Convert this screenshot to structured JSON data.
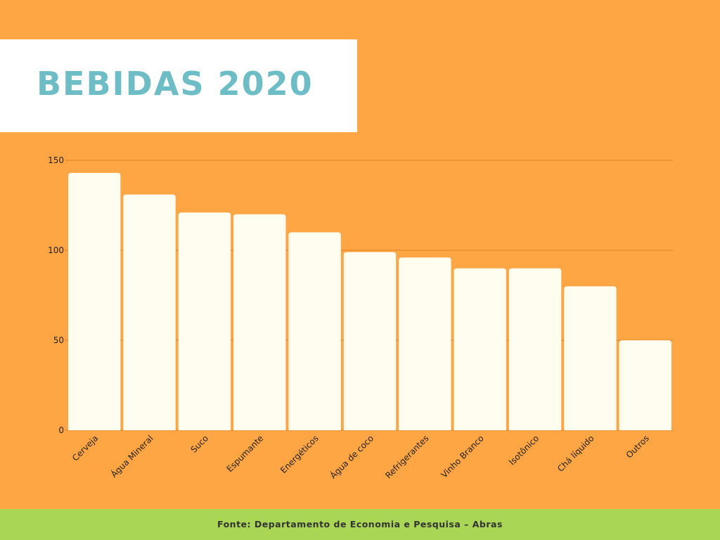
{
  "title": "BEBIDAS 2020",
  "footer": "Fonte: Departamento de Economia e Pesquisa – Abras",
  "colors": {
    "background": "#FFA644",
    "bar": "#FFFDF0",
    "title": "#6DBDC6",
    "footer_bar": "#A9D654",
    "gridline": "#E0801F"
  },
  "chart_data": {
    "type": "bar",
    "title": "",
    "xlabel": "",
    "ylabel": "",
    "categories": [
      "Cerveja",
      "Água Mineral",
      "Suco",
      "Espumante",
      "Energéticos",
      "Água de coco",
      "Refrigerantes",
      "Vinho Branco",
      "Isotônico",
      "Chá líquido",
      "Outros"
    ],
    "values": [
      143,
      131,
      121,
      120,
      110,
      99,
      96,
      90,
      90,
      80,
      50
    ],
    "ylim": [
      0,
      150
    ],
    "yticks": [
      0,
      50,
      100,
      150
    ],
    "grid": true,
    "legend": "none"
  }
}
